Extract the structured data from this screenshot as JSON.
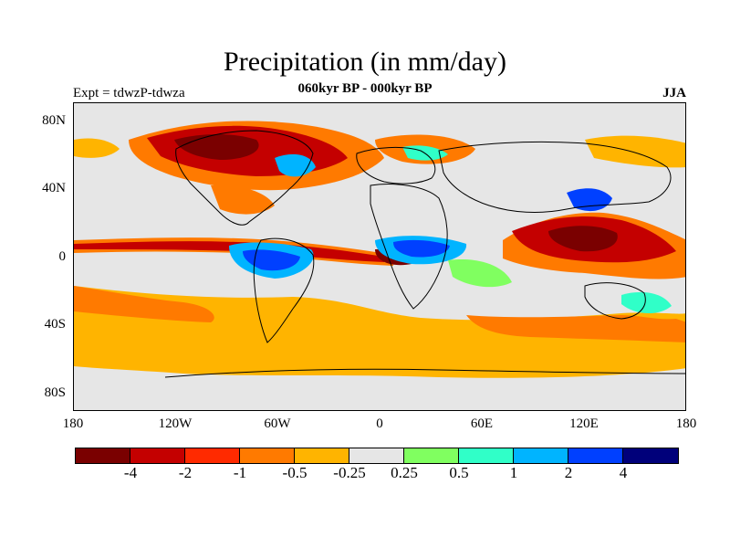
{
  "title": "Precipitation (in mm/day)",
  "subtitle": "060kyr BP - 000kyr BP",
  "left_label": "Expt = tdwzP-tdwza",
  "right_label": "JJA",
  "lat_labels": [
    "80N",
    "40N",
    "0",
    "40S",
    "80S"
  ],
  "lon_labels": [
    "180",
    "120W",
    "60W",
    "0",
    "60E",
    "120E",
    "180"
  ],
  "colorbar": {
    "labels": [
      "-4",
      "-2",
      "-1",
      "-0.5",
      "-0.25",
      "0.25",
      "0.5",
      "1",
      "2",
      "4"
    ],
    "colors": [
      "#7a0000",
      "#c40000",
      "#ff2a00",
      "#ff7a00",
      "#ffb400",
      "#e6e6e6",
      "#80ff60",
      "#30ffc8",
      "#00b4ff",
      "#0040ff",
      "#00007a"
    ]
  },
  "palette": {
    "no_change": "#e6e6e6",
    "land_outline": "#000000"
  }
}
